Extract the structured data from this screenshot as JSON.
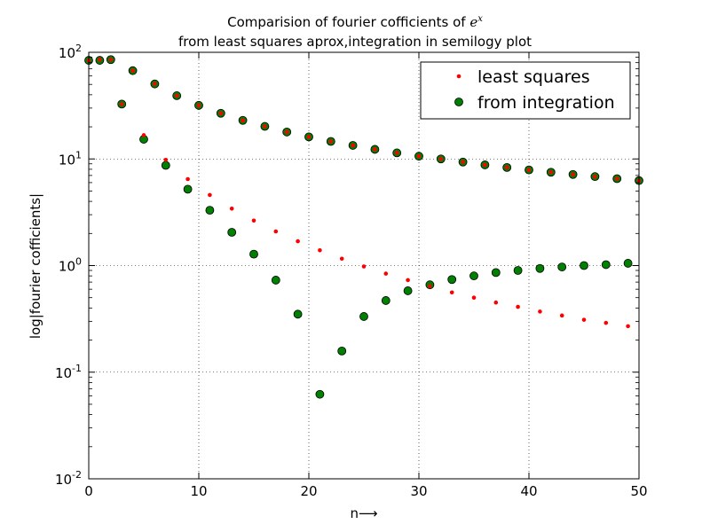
{
  "chart_data": {
    "type": "scatter",
    "title_line1": "Comparision of fourier cofficients of ",
    "title_math": "e",
    "title_math_sup": "x",
    "title_line2": "from least squares aprox,integration in semilogy plot",
    "xlabel": "n⟶",
    "ylabel": "log|fourier cofficients|",
    "xlim": [
      0,
      50
    ],
    "ylim": [
      0.01,
      100
    ],
    "yscale": "log",
    "grid": true,
    "legend_position": "top-right",
    "x_ticks": [
      0,
      10,
      20,
      30,
      40,
      50
    ],
    "x_tick_labels": [
      "0",
      "10",
      "20",
      "30",
      "40",
      "50"
    ],
    "y_ticks": [
      0.01,
      0.1,
      1,
      10,
      100
    ],
    "y_tick_bases": [
      "10",
      "10",
      "10",
      "10",
      "10"
    ],
    "y_tick_exps": [
      "-2",
      "-1",
      "0",
      "1",
      "2"
    ],
    "series": [
      {
        "name": "least squares",
        "color": "#ff0000",
        "marker": "small-dot",
        "x": [
          0,
          1,
          2,
          3,
          4,
          5,
          6,
          7,
          8,
          9,
          10,
          11,
          12,
          13,
          14,
          15,
          16,
          17,
          18,
          19,
          20,
          21,
          22,
          23,
          24,
          25,
          26,
          27,
          28,
          29,
          30,
          31,
          32,
          33,
          34,
          35,
          36,
          37,
          38,
          39,
          40,
          41,
          42,
          43,
          44,
          45,
          46,
          47,
          48,
          49,
          50
        ],
        "y": [
          84.1,
          85.4,
          85.4,
          32.7,
          67.3,
          16.7,
          50.5,
          9.81,
          39.2,
          6.47,
          31.8,
          4.59,
          26.8,
          3.42,
          23.0,
          2.64,
          20.2,
          2.09,
          17.9,
          1.69,
          16.1,
          1.39,
          14.6,
          1.16,
          13.4,
          0.98,
          12.3,
          0.84,
          11.4,
          0.73,
          10.6,
          0.64,
          10.0,
          0.56,
          9.35,
          0.5,
          8.8,
          0.45,
          8.32,
          0.41,
          7.89,
          0.37,
          7.5,
          0.34,
          7.15,
          0.31,
          6.83,
          0.29,
          6.53,
          0.27,
          6.26
        ]
      },
      {
        "name": "from integration",
        "color": "#008000",
        "marker": "circle",
        "x": [
          0,
          1,
          2,
          3,
          4,
          5,
          6,
          7,
          8,
          9,
          10,
          11,
          12,
          13,
          14,
          15,
          16,
          17,
          18,
          19,
          20,
          21,
          22,
          23,
          24,
          25,
          26,
          27,
          28,
          29,
          30,
          31,
          32,
          33,
          34,
          35,
          36,
          37,
          38,
          39,
          40,
          41,
          42,
          43,
          44,
          45,
          46,
          47,
          48,
          49,
          50
        ],
        "y": [
          84.1,
          84.1,
          85.4,
          32.7,
          67.3,
          15.3,
          50.5,
          8.7,
          39.2,
          5.2,
          31.8,
          3.3,
          26.8,
          2.05,
          23.0,
          1.28,
          20.2,
          0.73,
          17.9,
          0.35,
          16.1,
          0.062,
          14.6,
          0.158,
          13.4,
          0.333,
          12.3,
          0.47,
          11.4,
          0.58,
          10.6,
          0.66,
          10.0,
          0.74,
          9.35,
          0.8,
          8.8,
          0.86,
          8.32,
          0.9,
          7.89,
          0.94,
          7.5,
          0.97,
          7.15,
          1.0,
          6.83,
          1.02,
          6.53,
          1.05,
          6.26
        ]
      }
    ]
  }
}
